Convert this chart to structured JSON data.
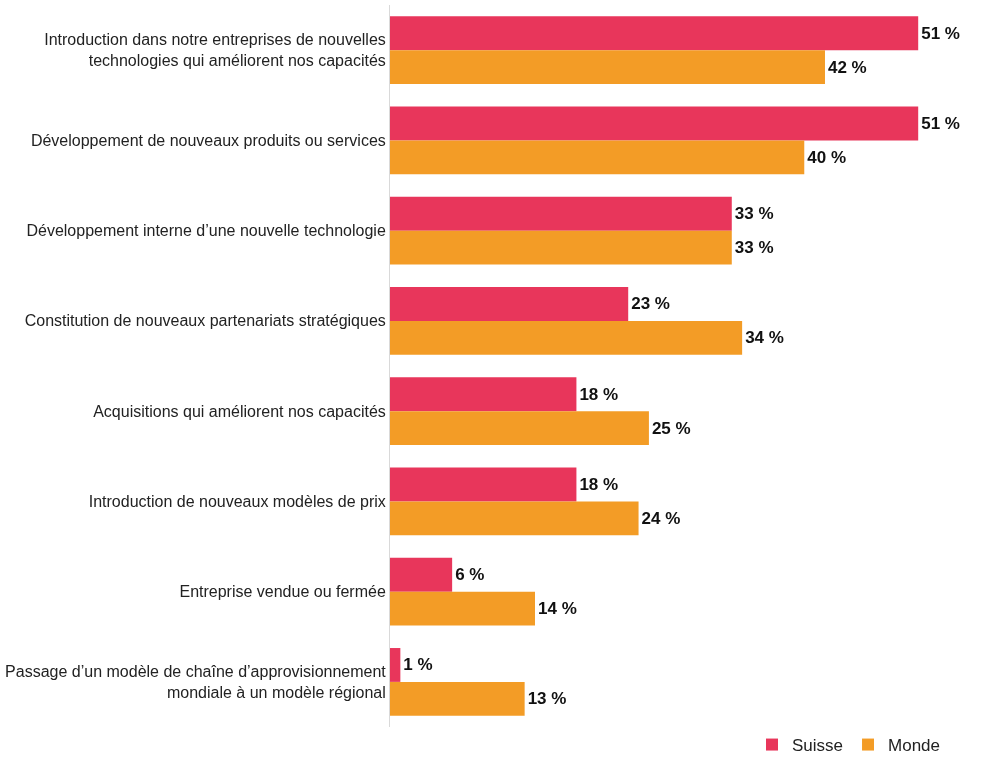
{
  "chart_data": {
    "type": "bar",
    "orientation": "horizontal",
    "categories": [
      "Introduction dans notre entreprises de nouvelles technologies qui améliorent nos capacités",
      "Développement de nouveaux produits ou services",
      "Développement interne d’une nouvelle technologie",
      "Constitution de nouveaux partenariats stratégiques",
      "Acquisitions qui améliorent nos capacités",
      "Introduction de nouveaux modèles de prix",
      "Entreprise vendue ou fermée",
      "Passage d’un modèle de chaîne d’approvisionnement mondiale à un modèle régional"
    ],
    "series": [
      {
        "name": "Suisse",
        "color": "#e8365b",
        "values": [
          51,
          51,
          33,
          23,
          18,
          18,
          6,
          1
        ],
        "value_labels": [
          "51 %",
          "51 %",
          "33 %",
          "23 %",
          "18 %",
          "18 %",
          "6 %",
          "1 %"
        ]
      },
      {
        "name": "Monde",
        "color": "#f39c26",
        "values": [
          42,
          40,
          33,
          34,
          25,
          24,
          14,
          13
        ],
        "value_labels": [
          "42 %",
          "40 %",
          "33 %",
          "34 %",
          "25 %",
          "24 %",
          "14 %",
          "13 %"
        ]
      }
    ],
    "tick_labels": "y",
    "legend": "bottom right"
  }
}
